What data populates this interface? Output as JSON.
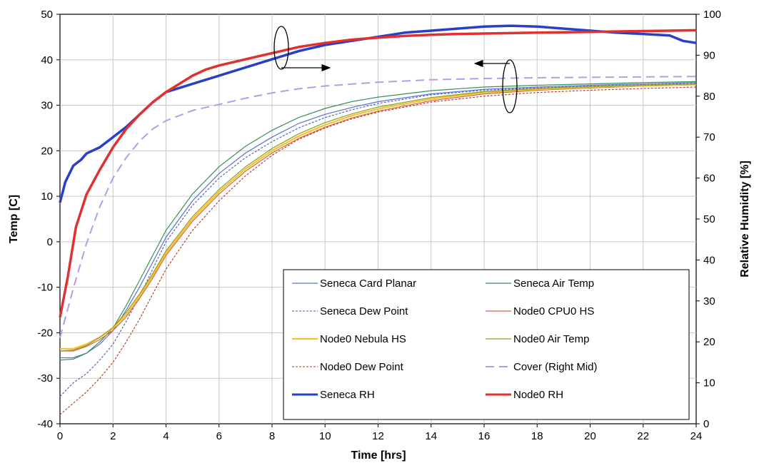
{
  "chart_data": {
    "type": "line",
    "xlabel": "Time [hrs]",
    "ylabel": "Temp [C]",
    "y2label": "Relative Humidity [%]",
    "xlim": [
      0,
      24
    ],
    "ylim": [
      -40,
      50
    ],
    "y2lim": [
      0,
      100
    ],
    "xticks": [
      "0",
      "2",
      "4",
      "6",
      "8",
      "10",
      "12",
      "14",
      "16",
      "18",
      "20",
      "22",
      "24"
    ],
    "yticks": [
      "50",
      "40",
      "30",
      "20",
      "10",
      "0",
      "-10",
      "-20",
      "-30",
      "-40"
    ],
    "y2ticks": [
      "100",
      "90",
      "80",
      "70",
      "60",
      "50",
      "40",
      "30",
      "20",
      "10",
      "0"
    ],
    "grid": true,
    "legend_position": "bottom-right",
    "series": [
      {
        "name": "Seneca Card Planar",
        "axis": "left",
        "color": "#5b6fd6",
        "dash": "",
        "width": 1.2,
        "x": [
          0,
          0.5,
          1,
          1.5,
          2,
          2.5,
          3,
          3.5,
          4,
          5,
          6,
          7,
          8,
          9,
          10,
          11,
          12,
          14,
          16,
          18,
          20,
          22,
          24
        ],
        "y": [
          -25.5,
          -25.5,
          -24.5,
          -22.5,
          -19.5,
          -15,
          -10,
          -4.5,
          1,
          9,
          15,
          19.5,
          23,
          26,
          28,
          29.5,
          30.8,
          32.5,
          33.5,
          34,
          34.4,
          34.7,
          35
        ]
      },
      {
        "name": "Seneca Air Temp",
        "axis": "left",
        "color": "#3a8f5a",
        "dash": "",
        "width": 1.2,
        "x": [
          0,
          0.5,
          1,
          1.5,
          2,
          2.5,
          3,
          3.5,
          4,
          5,
          6,
          7,
          8,
          9,
          10,
          11,
          12,
          14,
          16,
          18,
          20,
          22,
          24
        ],
        "y": [
          -26,
          -25.8,
          -24.5,
          -22,
          -19,
          -14,
          -8.5,
          -3,
          2.5,
          10.5,
          16.5,
          21,
          24.5,
          27.3,
          29.3,
          30.8,
          31.8,
          33.2,
          34,
          34.4,
          34.7,
          35,
          35.2
        ]
      },
      {
        "name": "Seneca Dew Point",
        "axis": "left",
        "color": "#4a5aa8",
        "dash": "3,2",
        "width": 1.1,
        "x": [
          0,
          0.5,
          1,
          1.5,
          2,
          2.5,
          3,
          3.5,
          4,
          5,
          6,
          7,
          8,
          9,
          10,
          11,
          12,
          14,
          16,
          18,
          20,
          22,
          24
        ],
        "y": [
          -34,
          -31,
          -29,
          -26,
          -22.5,
          -17.5,
          -12,
          -6,
          0,
          8,
          14,
          18.5,
          22,
          25,
          27.3,
          29,
          30.4,
          32.3,
          33.3,
          33.8,
          34.2,
          34.5,
          34.8
        ]
      },
      {
        "name": "Node0 CPU0 HS",
        "axis": "left",
        "color": "#d9604a",
        "dash": "",
        "width": 1.2,
        "x": [
          0,
          0.5,
          1,
          1.5,
          2,
          2.5,
          3,
          3.5,
          4,
          5,
          6,
          7,
          8,
          9,
          10,
          11,
          12,
          14,
          16,
          18,
          20,
          22,
          24
        ],
        "y": [
          -24,
          -24,
          -23,
          -21.5,
          -19.5,
          -16.5,
          -12.5,
          -8,
          -3,
          4.5,
          10.5,
          15.5,
          19.5,
          22.7,
          25.2,
          27.2,
          28.7,
          31,
          32.5,
          33.3,
          33.8,
          34.2,
          34.5
        ]
      },
      {
        "name": "Node0 Nebula HS",
        "axis": "left",
        "color": "#f2c230",
        "dash": "",
        "width": 2.2,
        "x": [
          0,
          0.5,
          1,
          1.5,
          2,
          2.5,
          3,
          3.5,
          4,
          5,
          6,
          7,
          8,
          9,
          10,
          11,
          12,
          14,
          16,
          18,
          20,
          22,
          24
        ],
        "y": [
          -23.5,
          -23.5,
          -22.5,
          -21,
          -19,
          -16,
          -12,
          -7.5,
          -2.5,
          5,
          11,
          16,
          20,
          23.2,
          25.7,
          27.7,
          29.2,
          31.4,
          32.8,
          33.5,
          34,
          34.3,
          34.6
        ]
      },
      {
        "name": "Node0 Air Temp",
        "axis": "left",
        "color": "#8aa01a",
        "dash": "",
        "width": 1.2,
        "x": [
          0,
          0.5,
          1,
          1.5,
          2,
          2.5,
          3,
          3.5,
          4,
          5,
          6,
          7,
          8,
          9,
          10,
          11,
          12,
          14,
          16,
          18,
          20,
          22,
          24
        ],
        "y": [
          -24,
          -23.8,
          -22.8,
          -21,
          -18.8,
          -15.5,
          -11.5,
          -7,
          -2,
          5.5,
          11.5,
          16.5,
          20.5,
          23.7,
          26.2,
          28.1,
          29.6,
          31.7,
          33,
          33.7,
          34.1,
          34.4,
          34.7
        ]
      },
      {
        "name": "Node0 Dew Point",
        "axis": "left",
        "color": "#b5341c",
        "dash": "3,2",
        "width": 1.1,
        "x": [
          0,
          0.5,
          1,
          1.5,
          2,
          2.5,
          3,
          3.5,
          4,
          5,
          6,
          7,
          8,
          9,
          10,
          11,
          12,
          14,
          16,
          18,
          20,
          22,
          24
        ],
        "y": [
          -38,
          -35.5,
          -33,
          -30,
          -26.5,
          -22,
          -17,
          -11.5,
          -6,
          2.5,
          9,
          14.5,
          19,
          22.5,
          25,
          27,
          28.5,
          30.7,
          32,
          32.8,
          33.3,
          33.7,
          34
        ]
      },
      {
        "name": "Cover (Right Mid)",
        "axis": "right",
        "color": "#b79be8",
        "dash": "12,7",
        "width": 2,
        "x": [
          0,
          0.5,
          1,
          1.5,
          2,
          2.5,
          3,
          3.5,
          4,
          5,
          6,
          7,
          8,
          9,
          10,
          12,
          14,
          16,
          18,
          20,
          22,
          24
        ],
        "y": [
          21,
          33,
          44,
          53,
          60,
          65,
          69,
          72,
          74,
          76.5,
          78,
          79.5,
          80.8,
          81.8,
          82.5,
          83.4,
          84,
          84.3,
          84.5,
          84.6,
          84.7,
          84.8
        ]
      },
      {
        "name": "Seneca RH",
        "axis": "right",
        "color": "#2a3fc7",
        "dash": "",
        "width": 3.5,
        "x": [
          0,
          0.2,
          0.5,
          0.8,
          1,
          1.5,
          2,
          2.5,
          3,
          3.5,
          4,
          4.5,
          5,
          5.5,
          6,
          7,
          8,
          9,
          10,
          11,
          12,
          13,
          14,
          15,
          16,
          17,
          18,
          19,
          20,
          21,
          22,
          23,
          23.5,
          24
        ],
        "y": [
          54,
          59,
          63,
          64.5,
          66,
          67.5,
          70,
          72.5,
          75.5,
          78.5,
          81,
          82,
          83,
          84,
          85,
          87,
          89,
          91,
          92.5,
          93.5,
          94.5,
          95.5,
          96,
          96.5,
          97,
          97.2,
          97,
          96.5,
          96,
          95.5,
          95.2,
          94.8,
          93.5,
          93
        ]
      },
      {
        "name": "Node0 RH",
        "axis": "right",
        "color": "#e03030",
        "dash": "",
        "width": 3.5,
        "x": [
          0,
          0.3,
          0.6,
          1,
          1.5,
          2,
          2.5,
          3,
          3.5,
          4,
          4.5,
          5,
          5.5,
          6,
          7,
          8,
          9,
          10,
          11,
          12,
          13,
          14,
          15,
          16,
          17,
          18,
          19,
          20,
          21,
          22,
          23,
          24
        ],
        "y": [
          26,
          36,
          48,
          56,
          62,
          67.5,
          72,
          75.5,
          78.5,
          81,
          83,
          85,
          86.5,
          87.5,
          89,
          90.5,
          92,
          93,
          93.8,
          94.3,
          94.7,
          95,
          95.2,
          95.3,
          95.4,
          95.5,
          95.6,
          95.7,
          95.8,
          95.9,
          96,
          96.1
        ]
      }
    ]
  }
}
